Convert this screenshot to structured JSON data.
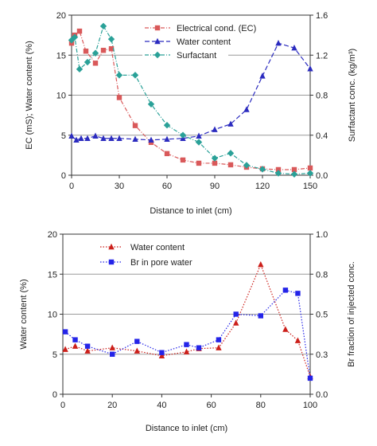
{
  "chart_data": [
    {
      "type": "line",
      "xlabel": "Distance to inlet (cm)",
      "ylabel": "EC (mS); Water content (%)",
      "y2label": "Surfactant conc. (kg/m³)",
      "xlim": [
        0,
        150
      ],
      "ylim": [
        0,
        20
      ],
      "y2lim": [
        0,
        1.6
      ],
      "xticks": [
        0,
        30,
        60,
        90,
        120,
        150
      ],
      "yticks": [
        0,
        5,
        10,
        15,
        20
      ],
      "y2ticks": [
        "0.0",
        "0.4",
        "0.8",
        "1.2",
        "1.6"
      ],
      "grid": "horizontal",
      "legend_position": "top-center",
      "series": [
        {
          "name": "Electrical cond. (EC)",
          "axis": "left",
          "color": "#d9595a",
          "marker": "square",
          "x": [
            0,
            2,
            5,
            9,
            15,
            20,
            25,
            30,
            40,
            50,
            60,
            70,
            80,
            90,
            100,
            110,
            120,
            130,
            140,
            150
          ],
          "y": [
            16.5,
            17.5,
            18,
            15.5,
            14,
            15.6,
            15.8,
            9.7,
            6.2,
            4.1,
            2.7,
            1.9,
            1.5,
            1.5,
            1.3,
            1.0,
            0.8,
            0.7,
            0.7,
            0.9
          ]
        },
        {
          "name": "Water content",
          "axis": "left",
          "color": "#2b2bbf",
          "marker": "triangle",
          "x": [
            0,
            3,
            6,
            10,
            15,
            20,
            25,
            30,
            40,
            50,
            60,
            70,
            80,
            90,
            100,
            110,
            120,
            130,
            140,
            150
          ],
          "y": [
            4.9,
            4.4,
            4.6,
            4.6,
            4.9,
            4.6,
            4.6,
            4.6,
            4.5,
            4.4,
            4.5,
            4.6,
            4.9,
            5.7,
            6.4,
            8.2,
            12.4,
            16.5,
            15.9,
            13.3
          ]
        },
        {
          "name": "Surfactant",
          "axis": "right",
          "color": "#2aa198",
          "marker": "diamond",
          "x": [
            0,
            2,
            5,
            10,
            15,
            20,
            25,
            30,
            40,
            50,
            60,
            70,
            80,
            90,
            100,
            110,
            120,
            130,
            140,
            150
          ],
          "y": [
            1.35,
            1.38,
            1.06,
            1.13,
            1.22,
            1.49,
            1.36,
            1.0,
            1.0,
            0.71,
            0.5,
            0.4,
            0.33,
            0.17,
            0.22,
            0.1,
            0.06,
            0.02,
            0.01,
            0.02
          ]
        }
      ]
    },
    {
      "type": "line",
      "xlabel": "Distance to inlet (cm)",
      "ylabel": "Water content (%)",
      "y2label": "Br  fraction of injected conc.",
      "xlim": [
        0,
        100
      ],
      "ylim": [
        0,
        20
      ],
      "y2lim": [
        0,
        1.0
      ],
      "xticks": [
        0,
        20,
        40,
        60,
        80,
        100
      ],
      "yticks": [
        0,
        5,
        10,
        15,
        20
      ],
      "y2ticks": [
        "0.0",
        "0.3",
        "0.5",
        "0.8",
        "1.0"
      ],
      "grid": "horizontal",
      "legend_position": "top-left",
      "series": [
        {
          "name": "Water content",
          "axis": "left",
          "color": "#cc1f1a",
          "marker": "triangle",
          "x": [
            1,
            5,
            10,
            20,
            30,
            40,
            50,
            55,
            63,
            70,
            80,
            90,
            95,
            100
          ],
          "y": [
            5.6,
            6.0,
            5.4,
            5.8,
            5.4,
            4.8,
            5.3,
            5.7,
            5.8,
            8.9,
            16.2,
            8.1,
            6.7,
            2.2
          ]
        },
        {
          "name": "Br in pore water",
          "axis": "right",
          "color": "#2424e8",
          "marker": "square",
          "x": [
            1,
            5,
            10,
            20,
            30,
            40,
            50,
            55,
            63,
            70,
            80,
            90,
            95,
            100
          ],
          "y": [
            0.39,
            0.34,
            0.3,
            0.25,
            0.33,
            0.26,
            0.31,
            0.29,
            0.34,
            0.5,
            0.49,
            0.65,
            0.63,
            0.1
          ]
        }
      ]
    }
  ]
}
